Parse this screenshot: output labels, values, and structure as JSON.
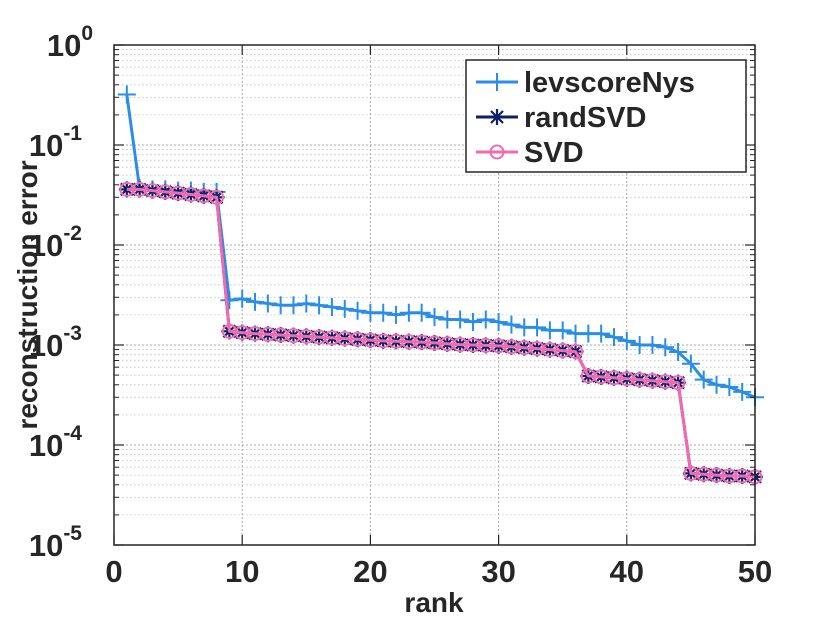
{
  "chart_data": {
    "type": "line",
    "title": "",
    "xlabel": "rank",
    "ylabel": "reconstruction error",
    "xlim": [
      0,
      50
    ],
    "ylim": [
      1e-05,
      1
    ],
    "yscale": "log",
    "grid": true,
    "legend_position": "top-right",
    "x_ticks": [
      "0",
      "10",
      "20",
      "30",
      "40",
      "50"
    ],
    "y_ticks": [
      {
        "base": "10",
        "exp": "0"
      },
      {
        "base": "10",
        "exp": "-1"
      },
      {
        "base": "10",
        "exp": "-2"
      },
      {
        "base": "10",
        "exp": "-3"
      },
      {
        "base": "10",
        "exp": "-4"
      },
      {
        "base": "10",
        "exp": "-5"
      }
    ],
    "x": [
      1,
      2,
      3,
      4,
      5,
      6,
      7,
      8,
      9,
      10,
      11,
      12,
      13,
      14,
      15,
      16,
      17,
      18,
      19,
      20,
      21,
      22,
      23,
      24,
      25,
      26,
      27,
      28,
      29,
      30,
      31,
      32,
      33,
      34,
      35,
      36,
      37,
      38,
      39,
      40,
      41,
      42,
      43,
      44,
      45,
      46,
      47,
      48,
      49,
      50
    ],
    "series": [
      {
        "name": "levscoreNys",
        "color": "#2b8ee6",
        "marker": "plus",
        "values": [
          0.32,
          0.037,
          0.036,
          0.036,
          0.035,
          0.035,
          0.034,
          0.034,
          0.0028,
          0.0029,
          0.0027,
          0.0026,
          0.0025,
          0.0025,
          0.0026,
          0.0025,
          0.0024,
          0.0023,
          0.0022,
          0.0021,
          0.0021,
          0.002,
          0.0021,
          0.0021,
          0.0019,
          0.0018,
          0.0018,
          0.0017,
          0.0018,
          0.0017,
          0.0016,
          0.0015,
          0.0015,
          0.0014,
          0.0014,
          0.0013,
          0.0013,
          0.0013,
          0.0012,
          0.0011,
          0.001,
          0.001,
          0.00095,
          0.00085,
          0.00065,
          0.00045,
          0.0004,
          0.00038,
          0.00034,
          0.0003
        ]
      },
      {
        "name": "randSVD",
        "color": "#0d1f66",
        "marker": "star",
        "values": [
          0.036,
          0.036,
          0.035,
          0.034,
          0.033,
          0.032,
          0.031,
          0.03,
          0.00137,
          0.00133,
          0.0013,
          0.00128,
          0.00126,
          0.00124,
          0.00122,
          0.0012,
          0.00118,
          0.00116,
          0.00114,
          0.00112,
          0.0011,
          0.00109,
          0.00108,
          0.00107,
          0.00105,
          0.00103,
          0.00101,
          0.001,
          0.00099,
          0.00098,
          0.00096,
          0.00094,
          0.00092,
          0.0009,
          0.00088,
          0.00086,
          0.00049,
          0.00048,
          0.00047,
          0.00046,
          0.00045,
          0.00044,
          0.00043,
          0.00042,
          5.2e-05,
          5.1e-05,
          5e-05,
          4.9e-05,
          4.9e-05,
          4.8e-05
        ]
      },
      {
        "name": "SVD",
        "color": "#f26bb0",
        "marker": "circle",
        "values": [
          0.036,
          0.036,
          0.035,
          0.034,
          0.033,
          0.032,
          0.031,
          0.03,
          0.00137,
          0.00133,
          0.0013,
          0.00128,
          0.00126,
          0.00124,
          0.00122,
          0.0012,
          0.00118,
          0.00116,
          0.00114,
          0.00112,
          0.0011,
          0.00109,
          0.00108,
          0.00107,
          0.00105,
          0.00103,
          0.00101,
          0.001,
          0.00099,
          0.00098,
          0.00096,
          0.00094,
          0.00092,
          0.0009,
          0.00088,
          0.00086,
          0.00049,
          0.00048,
          0.00047,
          0.00046,
          0.00045,
          0.00044,
          0.00043,
          0.00042,
          5.2e-05,
          5.1e-05,
          5e-05,
          4.9e-05,
          4.9e-05,
          4.8e-05
        ]
      }
    ]
  }
}
